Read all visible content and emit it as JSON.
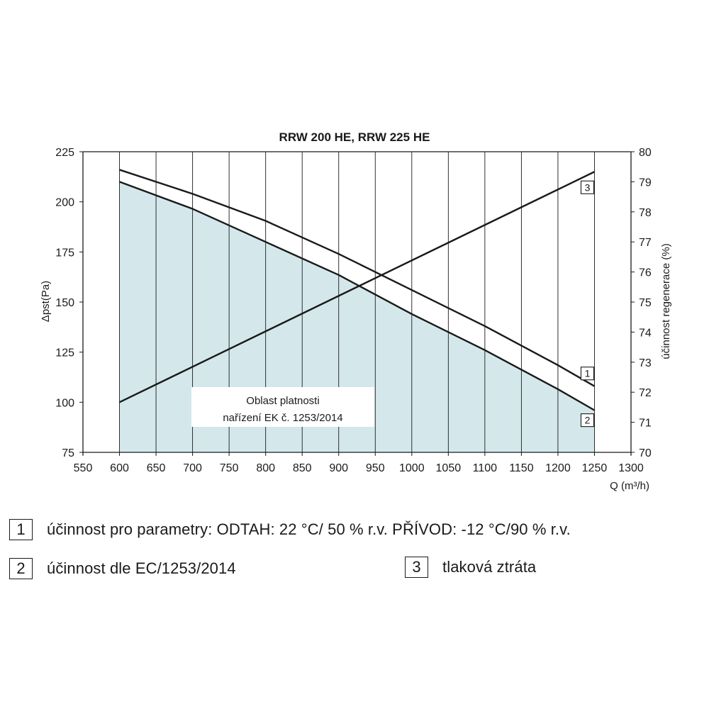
{
  "chart_data": {
    "type": "line",
    "title": "RRW 200 HE, RRW 225 HE",
    "xlabel": "Q (m³/h)",
    "ylabel_left": "Δpst(Pa)",
    "ylabel_right": "účinnost regenerace (%)",
    "xlim": [
      550,
      1300
    ],
    "ylim_left": [
      75,
      225
    ],
    "ylim_right": [
      70,
      80
    ],
    "x_ticks": [
      550,
      600,
      650,
      700,
      750,
      800,
      850,
      900,
      950,
      1000,
      1050,
      1100,
      1150,
      1200,
      1250,
      1300
    ],
    "y_left_ticks": [
      75,
      100,
      125,
      150,
      175,
      200,
      225
    ],
    "y_right_ticks": [
      70,
      71,
      72,
      73,
      74,
      75,
      76,
      77,
      78,
      79,
      80
    ],
    "grid": "vertical",
    "region": {
      "label_line1": "Oblast platnosti",
      "label_line2": "nařízení EK č. 1253/2014",
      "x": [
        600,
        1250
      ],
      "color": "#d4e8ec"
    },
    "series": [
      {
        "name": "1",
        "axis": "right",
        "x": [
          600,
          700,
          800,
          900,
          1000,
          1100,
          1200,
          1250
        ],
        "values": [
          79.4,
          78.6,
          77.7,
          76.6,
          75.4,
          74.2,
          72.9,
          72.2
        ]
      },
      {
        "name": "2",
        "axis": "right",
        "x": [
          600,
          700,
          800,
          900,
          1000,
          1100,
          1200,
          1250
        ],
        "values": [
          79.0,
          78.1,
          77.0,
          75.9,
          74.6,
          73.4,
          72.1,
          71.4
        ]
      },
      {
        "name": "3",
        "axis": "left",
        "x": [
          600,
          1250
        ],
        "values": [
          100,
          215
        ]
      }
    ]
  },
  "legend": {
    "item1": {
      "num": "1",
      "text": "účinnost pro parametry: ODTAH: 22 °C/ 50 % r.v. PŘÍVOD: -12 °C/90 % r.v."
    },
    "item2": {
      "num": "2",
      "text": "účinnost dle EC/1253/2014"
    },
    "item3": {
      "num": "3",
      "text": "tlaková ztráta"
    }
  }
}
